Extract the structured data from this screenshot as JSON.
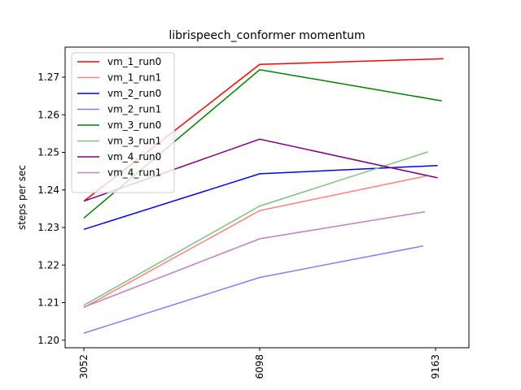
{
  "chart_data": {
    "type": "line",
    "title": "librispeech_conformer momentum",
    "xlabel": "",
    "ylabel": "steps per sec",
    "x_ticks": [
      "3052",
      "6098",
      "9163"
    ],
    "x_range": [
      3052,
      9163
    ],
    "y_range": [
      1.198,
      1.278
    ],
    "y_ticks": [
      "1.20",
      "1.21",
      "1.22",
      "1.23",
      "1.24",
      "1.25",
      "1.26",
      "1.27"
    ],
    "legend_position": "upper-left",
    "grid": false,
    "series": [
      {
        "name": "vm_1_run0",
        "color": "#ff0000",
        "x": [
          3052,
          6098,
          9300
        ],
        "y": [
          1.237,
          1.2734,
          1.2749
        ]
      },
      {
        "name": "vm_1_run1",
        "color": "#ff8080",
        "x": [
          3052,
          6098,
          9000
        ],
        "y": [
          1.2087,
          1.2345,
          1.2437
        ]
      },
      {
        "name": "vm_2_run0",
        "color": "#0000ff",
        "x": [
          3052,
          6098,
          9200
        ],
        "y": [
          1.2295,
          1.2443,
          1.2465
        ]
      },
      {
        "name": "vm_2_run1",
        "color": "#8080ff",
        "x": [
          3052,
          6098,
          8950
        ],
        "y": [
          1.2019,
          1.2167,
          1.2251
        ]
      },
      {
        "name": "vm_3_run0",
        "color": "#008000",
        "x": [
          3052,
          6098,
          9270
        ],
        "y": [
          1.2325,
          1.272,
          1.2637
        ]
      },
      {
        "name": "vm_3_run1",
        "color": "#80c080",
        "x": [
          3052,
          6098,
          9030
        ],
        "y": [
          1.2093,
          1.2357,
          1.2501
        ]
      },
      {
        "name": "vm_4_run0",
        "color": "#800080",
        "x": [
          3052,
          6098,
          9200
        ],
        "y": [
          1.237,
          1.2535,
          1.2432
        ]
      },
      {
        "name": "vm_4_run1",
        "color": "#c080c0",
        "x": [
          3052,
          6098,
          8980
        ],
        "y": [
          1.2088,
          1.227,
          1.2342
        ]
      }
    ]
  }
}
